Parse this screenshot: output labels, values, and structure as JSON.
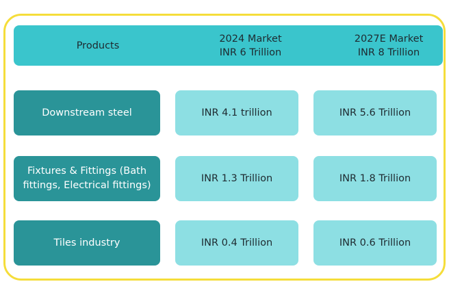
{
  "header": {
    "products_label": "Products",
    "col_2024_line1": "2024 Market",
    "col_2024_line2": "INR 6 Trillion",
    "col_2027_line1": "2027E Market",
    "col_2027_line2": "INR 8 Trillion"
  },
  "rows": [
    {
      "product": "Downstream steel",
      "v2024": "INR 4.1 trillion",
      "v2027": "INR 5.6 Trillion"
    },
    {
      "product": "Fixtures & Fittings (Bath fittings, Electrical fittings)",
      "v2024": "INR 1.3 Trillion",
      "v2027": "INR 1.8 Trillion"
    },
    {
      "product": "Tiles industry",
      "v2024": "INR 0.4 Trillion",
      "v2027": "INR 0.6 Trillion"
    }
  ],
  "colors": {
    "frame_border": "#f5dd3a",
    "header_bg": "#3ac5cc",
    "label_bg": "#2a9498",
    "value_bg": "#8ddfe3"
  }
}
